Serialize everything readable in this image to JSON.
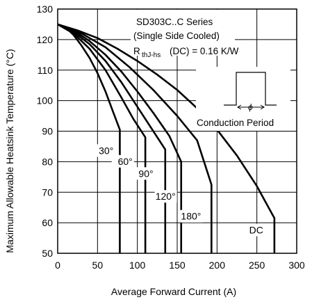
{
  "chart_data": {
    "type": "line",
    "xlabel": "Average Forward Current (A)",
    "ylabel": "Maximum Allowable Heatsink Temperature (°C)",
    "xlim": [
      0,
      300
    ],
    "ylim": [
      50,
      130
    ],
    "xticks": [
      0,
      50,
      100,
      150,
      200,
      250,
      300
    ],
    "yticks": [
      50,
      60,
      70,
      80,
      90,
      100,
      110,
      120,
      130
    ],
    "grid": true,
    "annotation": {
      "title_line1": "SD303C..C Series",
      "title_line2": "(Single Side Cooled)",
      "rth_prefix": "R",
      "rth_sub": "thJ-hs",
      "rth_suffix": "(DC) = 0.16 K/W",
      "inset_symbol": "ϕ",
      "inset_label": "Conduction Period"
    },
    "series": [
      {
        "name": "30°",
        "x": [
          0,
          10,
          20,
          30,
          40,
          50,
          60,
          70,
          78,
          78
        ],
        "y": [
          125,
          124,
          121.5,
          118,
          114,
          109,
          103,
          96,
          90.5,
          50
        ]
      },
      {
        "name": "60°",
        "x": [
          0,
          20,
          40,
          60,
          80,
          95,
          110,
          110
        ],
        "y": [
          125,
          122,
          117,
          110,
          101,
          94,
          88,
          50
        ]
      },
      {
        "name": "90°",
        "x": [
          0,
          20,
          40,
          60,
          80,
          100,
          120,
          135,
          135
        ],
        "y": [
          125,
          122.5,
          118.5,
          113,
          106,
          98,
          90,
          84,
          50
        ]
      },
      {
        "name": "120°",
        "x": [
          0,
          20,
          40,
          60,
          80,
          100,
          120,
          140,
          155,
          155
        ],
        "y": [
          125,
          123,
          119.5,
          115,
          109.5,
          103,
          96,
          88.5,
          80,
          50
        ]
      },
      {
        "name": "180°",
        "x": [
          0,
          30,
          60,
          90,
          120,
          150,
          175,
          193,
          193
        ],
        "y": [
          125,
          122,
          117.5,
          111,
          103.5,
          95,
          87,
          72.5,
          50
        ]
      },
      {
        "name": "DC",
        "x": [
          0,
          25,
          50,
          75,
          100,
          125,
          150,
          175,
          200,
          225,
          250,
          272,
          272
        ],
        "y": [
          125,
          123,
          120.5,
          117,
          113,
          108.5,
          103.5,
          97.5,
          90.5,
          82,
          72,
          61.5,
          50
        ]
      }
    ],
    "curve_labels": [
      "30°",
      "60°",
      "90°",
      "120°",
      "180°",
      "DC"
    ]
  }
}
